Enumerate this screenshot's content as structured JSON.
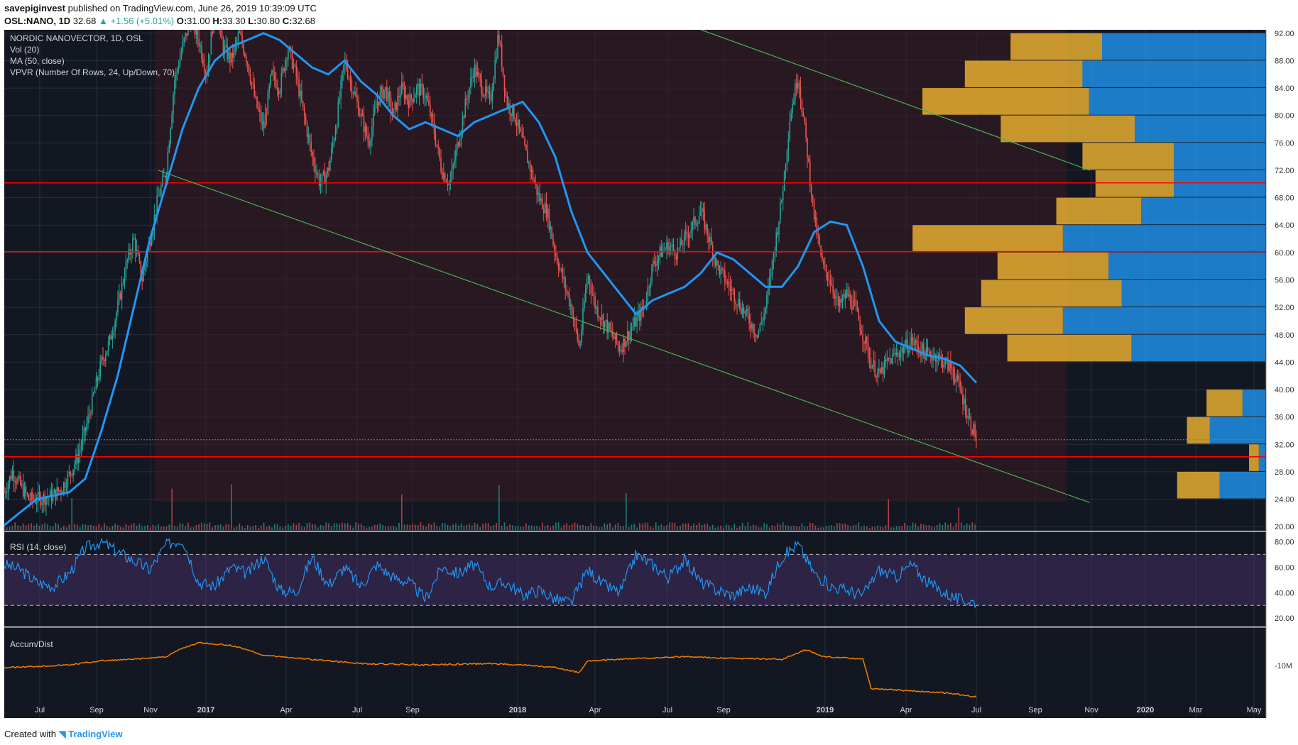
{
  "header": {
    "author": "savepiginvest",
    "published": "published on TradingView.com, June 26, 2019 10:39:09 UTC",
    "symbol": "OSL:NANO, 1D",
    "last": "32.68",
    "change": "+1.56 (+5.01%)",
    "ohlc": [
      {
        "k": "O:",
        "v": "31.00"
      },
      {
        "k": "H:",
        "v": "33.30"
      },
      {
        "k": "L:",
        "v": "30.80"
      },
      {
        "k": "C:",
        "v": "32.68"
      }
    ]
  },
  "footer": {
    "created": "Created with",
    "brand": "TradingView"
  },
  "colors": {
    "bg": "#131722",
    "up": "#26a69a",
    "down": "#ef5350",
    "ma": "#2196f3",
    "hline": "#ff0000",
    "trend": "#4caf50",
    "rsi": "#2196f3",
    "rsi_band": "#5c3a87",
    "accum": "#f57c00",
    "vpvr_up": "#2196f3",
    "vpvr_down": "#f2b632"
  },
  "chart_data": [
    {
      "type": "line",
      "title": "NORDIC NANOVECTOR, 1D, OSL",
      "indicators": [
        "Vol (20)",
        "MA (50, close)",
        "VPVR (Number Of Rows, 24, Up/Down, 70)"
      ],
      "x_ticks": [
        "Jul",
        "Sep",
        "Nov",
        "2017",
        "Apr",
        "Jul",
        "Sep",
        "2018",
        "Apr",
        "Jul",
        "Sep",
        "2019",
        "Apr",
        "Jul",
        "Sep",
        "Nov",
        "2020",
        "Mar",
        "May"
      ],
      "y_ticks": [
        "92.00",
        "88.00",
        "84.00",
        "80.00",
        "76.00",
        "72.00",
        "68.00",
        "64.00",
        "60.00",
        "56.00",
        "52.00",
        "48.00",
        "44.00",
        "40.00",
        "36.00",
        "32.00",
        "28.00",
        "24.00",
        "20.00"
      ],
      "ylim": [
        19.5,
        92.5
      ],
      "price_path": [
        [
          0,
          25
        ],
        [
          0.25,
          28
        ],
        [
          0.5,
          26
        ],
        [
          0.75,
          24
        ],
        [
          1,
          24
        ],
        [
          1.5,
          24.5
        ],
        [
          1.75,
          25.5
        ],
        [
          2,
          27.5
        ],
        [
          2.25,
          30
        ],
        [
          2.5,
          34
        ],
        [
          2.75,
          39
        ],
        [
          3,
          44
        ],
        [
          3.25,
          47
        ],
        [
          3.5,
          52
        ],
        [
          3.75,
          58
        ],
        [
          4,
          62
        ],
        [
          4.25,
          56
        ],
        [
          4.5,
          62
        ],
        [
          4.75,
          68
        ],
        [
          5,
          72
        ],
        [
          5.25,
          85
        ],
        [
          5.5,
          90
        ],
        [
          5.75,
          94
        ],
        [
          6,
          91
        ],
        [
          6.25,
          86
        ],
        [
          6.5,
          96
        ],
        [
          6.75,
          90
        ],
        [
          7,
          88
        ],
        [
          7.25,
          92
        ],
        [
          7.5,
          88
        ],
        [
          7.75,
          82
        ],
        [
          8,
          78
        ],
        [
          8.25,
          86
        ],
        [
          8.5,
          84
        ],
        [
          8.75,
          90
        ],
        [
          9,
          86
        ],
        [
          9.25,
          80
        ],
        [
          9.5,
          74
        ],
        [
          9.75,
          70
        ],
        [
          10,
          72
        ],
        [
          10.25,
          79
        ],
        [
          10.5,
          88
        ],
        [
          10.75,
          84
        ],
        [
          11,
          80
        ],
        [
          11.25,
          76
        ],
        [
          11.5,
          82
        ],
        [
          11.75,
          84
        ],
        [
          12,
          80
        ],
        [
          12.25,
          84
        ],
        [
          12.5,
          82
        ],
        [
          12.75,
          84
        ],
        [
          13,
          83
        ],
        [
          13.25,
          78
        ],
        [
          13.5,
          72
        ],
        [
          13.75,
          70
        ],
        [
          14,
          76
        ],
        [
          14.25,
          82
        ],
        [
          14.5,
          87
        ],
        [
          14.75,
          84
        ],
        [
          15,
          82
        ],
        [
          15.25,
          92
        ],
        [
          15.5,
          82
        ],
        [
          15.75,
          80
        ],
        [
          16,
          76
        ],
        [
          16.25,
          72
        ],
        [
          16.5,
          68
        ],
        [
          16.75,
          66
        ],
        [
          17,
          60
        ],
        [
          17.25,
          56
        ],
        [
          17.5,
          52
        ],
        [
          17.75,
          46
        ],
        [
          18,
          57
        ],
        [
          18.25,
          52
        ],
        [
          18.5,
          50
        ],
        [
          18.75,
          48
        ],
        [
          19,
          46
        ],
        [
          19.25,
          48
        ],
        [
          19.5,
          50
        ],
        [
          19.75,
          52
        ],
        [
          20,
          58
        ],
        [
          20.25,
          60
        ],
        [
          20.5,
          61
        ],
        [
          20.75,
          60
        ],
        [
          21,
          62
        ],
        [
          21.25,
          64
        ],
        [
          21.5,
          66
        ],
        [
          21.75,
          62
        ],
        [
          22,
          58
        ],
        [
          22.25,
          56
        ],
        [
          22.5,
          54
        ],
        [
          22.75,
          52
        ],
        [
          23,
          50
        ],
        [
          23.25,
          48
        ],
        [
          23.5,
          52
        ],
        [
          23.75,
          60
        ],
        [
          24,
          68
        ],
        [
          24.25,
          80
        ],
        [
          24.5,
          86
        ],
        [
          24.75,
          76
        ],
        [
          25,
          65
        ],
        [
          25.25,
          58
        ],
        [
          25.5,
          56
        ],
        [
          25.75,
          52
        ],
        [
          26,
          54
        ],
        [
          26.25,
          52
        ],
        [
          26.5,
          48
        ],
        [
          26.75,
          44
        ],
        [
          27,
          42
        ],
        [
          27.25,
          44
        ],
        [
          27.5,
          45
        ],
        [
          27.75,
          46
        ],
        [
          28,
          47
        ],
        [
          28.25,
          46
        ],
        [
          28.5,
          45
        ],
        [
          28.75,
          45
        ],
        [
          29,
          44
        ],
        [
          29.25,
          43
        ],
        [
          29.5,
          40
        ],
        [
          29.75,
          36
        ],
        [
          30,
          33
        ]
      ],
      "ma50_path": [
        [
          0,
          20.2
        ],
        [
          1,
          24
        ],
        [
          2,
          25
        ],
        [
          2.5,
          27
        ],
        [
          3,
          34
        ],
        [
          3.5,
          42
        ],
        [
          4,
          52
        ],
        [
          4.5,
          62
        ],
        [
          5,
          70
        ],
        [
          5.5,
          78
        ],
        [
          6,
          84
        ],
        [
          6.5,
          88
        ],
        [
          7,
          90
        ],
        [
          7.5,
          91
        ],
        [
          8,
          92
        ],
        [
          8.5,
          91
        ],
        [
          9,
          89
        ],
        [
          9.5,
          87
        ],
        [
          10,
          86
        ],
        [
          10.5,
          88
        ],
        [
          11,
          85
        ],
        [
          11.5,
          83
        ],
        [
          12,
          80
        ],
        [
          12.5,
          78
        ],
        [
          13,
          79
        ],
        [
          13.5,
          78
        ],
        [
          14,
          77
        ],
        [
          14.5,
          79
        ],
        [
          15,
          80
        ],
        [
          15.5,
          81
        ],
        [
          16,
          82
        ],
        [
          16.5,
          79
        ],
        [
          17,
          74
        ],
        [
          17.5,
          66
        ],
        [
          18,
          60
        ],
        [
          18.5,
          57
        ],
        [
          19,
          54
        ],
        [
          19.5,
          51
        ],
        [
          20,
          53
        ],
        [
          20.5,
          54
        ],
        [
          21,
          55
        ],
        [
          21.5,
          57
        ],
        [
          22,
          60
        ],
        [
          22.5,
          59
        ],
        [
          23,
          57
        ],
        [
          23.5,
          55
        ],
        [
          24,
          55
        ],
        [
          24.5,
          58
        ],
        [
          25,
          63
        ],
        [
          25.5,
          64.5
        ],
        [
          26,
          64
        ],
        [
          26.5,
          58
        ],
        [
          27,
          50
        ],
        [
          27.5,
          47
        ],
        [
          28,
          46
        ],
        [
          28.5,
          45
        ],
        [
          29,
          44.5
        ],
        [
          29.5,
          43.5
        ],
        [
          30,
          41
        ]
      ],
      "horizontal_levels": [
        {
          "value": 70.16,
          "label": "70.16"
        },
        {
          "value": 60.12,
          "label": "60.12"
        },
        {
          "value": 30.18,
          "label": "30.18"
        }
      ],
      "last_price_label": "32.68",
      "trendlines": [
        {
          "from": [
            4.75,
            72
          ],
          "to": [
            33.5,
            23.5
          ]
        },
        {
          "from": [
            21.5,
            92.5
          ],
          "to": [
            33.5,
            72
          ]
        }
      ],
      "vpvr_rows": [
        {
          "price": 90,
          "up": 2.8,
          "down": 5.0
        },
        {
          "price": 86,
          "up": 3.6,
          "down": 5.6
        },
        {
          "price": 82,
          "up": 5.1,
          "down": 5.4
        },
        {
          "price": 78,
          "up": 4.1,
          "down": 4.0
        },
        {
          "price": 74,
          "up": 2.8,
          "down": 2.8
        },
        {
          "price": 70,
          "up": 2.4,
          "down": 2.8
        },
        {
          "price": 66,
          "up": 2.6,
          "down": 3.8
        },
        {
          "price": 62,
          "up": 4.6,
          "down": 6.2
        },
        {
          "price": 58,
          "up": 3.4,
          "down": 4.8
        },
        {
          "price": 54,
          "up": 4.3,
          "down": 4.4
        },
        {
          "price": 50,
          "up": 3.0,
          "down": 6.2
        },
        {
          "price": 46,
          "up": 3.8,
          "down": 4.1
        },
        {
          "price": 38,
          "up": 1.1,
          "down": 0.7
        },
        {
          "price": 34,
          "up": 0.7,
          "down": 1.7
        },
        {
          "price": 30,
          "up": 0.3,
          "down": 0.2
        },
        {
          "price": 26,
          "up": 1.3,
          "down": 1.4
        }
      ]
    },
    {
      "type": "line",
      "title": "RSI (14, close)",
      "y_ticks": [
        "80.00",
        "60.00",
        "40.00",
        "20.00"
      ],
      "ylim": [
        14,
        88
      ],
      "upper_band": 70,
      "lower_band": 30,
      "rsi_path": [
        [
          0,
          62
        ],
        [
          0.5,
          58
        ],
        [
          1,
          48
        ],
        [
          1.5,
          45
        ],
        [
          2,
          55
        ],
        [
          2.5,
          75
        ],
        [
          3,
          80
        ],
        [
          3.5,
          72
        ],
        [
          4,
          65
        ],
        [
          4.5,
          58
        ],
        [
          5,
          78
        ],
        [
          5.5,
          82
        ],
        [
          6,
          48
        ],
        [
          6.5,
          45
        ],
        [
          7,
          60
        ],
        [
          7.5,
          55
        ],
        [
          8,
          68
        ],
        [
          8.5,
          42
        ],
        [
          9,
          40
        ],
        [
          9.5,
          68
        ],
        [
          10,
          46
        ],
        [
          10.5,
          60
        ],
        [
          11,
          45
        ],
        [
          11.5,
          62
        ],
        [
          12,
          52
        ],
        [
          12.5,
          48
        ],
        [
          13,
          35
        ],
        [
          13.5,
          60
        ],
        [
          14,
          55
        ],
        [
          14.5,
          62
        ],
        [
          15,
          45
        ],
        [
          15.5,
          48
        ],
        [
          16,
          38
        ],
        [
          16.5,
          42
        ],
        [
          17,
          35
        ],
        [
          17.5,
          32
        ],
        [
          18,
          58
        ],
        [
          18.5,
          46
        ],
        [
          19,
          40
        ],
        [
          19.5,
          70
        ],
        [
          20,
          62
        ],
        [
          20.5,
          52
        ],
        [
          21,
          66
        ],
        [
          21.5,
          48
        ],
        [
          22,
          42
        ],
        [
          22.5,
          38
        ],
        [
          23,
          44
        ],
        [
          23.5,
          40
        ],
        [
          24,
          68
        ],
        [
          24.5,
          78
        ],
        [
          25,
          55
        ],
        [
          25.5,
          45
        ],
        [
          26,
          42
        ],
        [
          26.5,
          38
        ],
        [
          27,
          58
        ],
        [
          27.5,
          52
        ],
        [
          28,
          62
        ],
        [
          28.5,
          48
        ],
        [
          29,
          40
        ],
        [
          29.5,
          34
        ],
        [
          30,
          33
        ]
      ]
    },
    {
      "type": "line",
      "title": "Accum/Dist",
      "y_ticks": [
        "-10M"
      ],
      "accum_path": [
        [
          0,
          0.48
        ],
        [
          2,
          0.44
        ],
        [
          3,
          0.38
        ],
        [
          4,
          0.36
        ],
        [
          5,
          0.32
        ],
        [
          5.5,
          0.2
        ],
        [
          6,
          0.12
        ],
        [
          7,
          0.16
        ],
        [
          7.5,
          0.22
        ],
        [
          8,
          0.3
        ],
        [
          9,
          0.34
        ],
        [
          10,
          0.38
        ],
        [
          11,
          0.42
        ],
        [
          13,
          0.44
        ],
        [
          15,
          0.42
        ],
        [
          16,
          0.44
        ],
        [
          17,
          0.48
        ],
        [
          17.75,
          0.55
        ],
        [
          18,
          0.38
        ],
        [
          19,
          0.36
        ],
        [
          20,
          0.34
        ],
        [
          21,
          0.32
        ],
        [
          22,
          0.34
        ],
        [
          24,
          0.36
        ],
        [
          24.75,
          0.22
        ],
        [
          25.25,
          0.32
        ],
        [
          26,
          0.34
        ],
        [
          26.5,
          0.35
        ],
        [
          26.75,
          0.78
        ],
        [
          27.5,
          0.8
        ],
        [
          29,
          0.84
        ],
        [
          30,
          0.9
        ]
      ]
    }
  ]
}
